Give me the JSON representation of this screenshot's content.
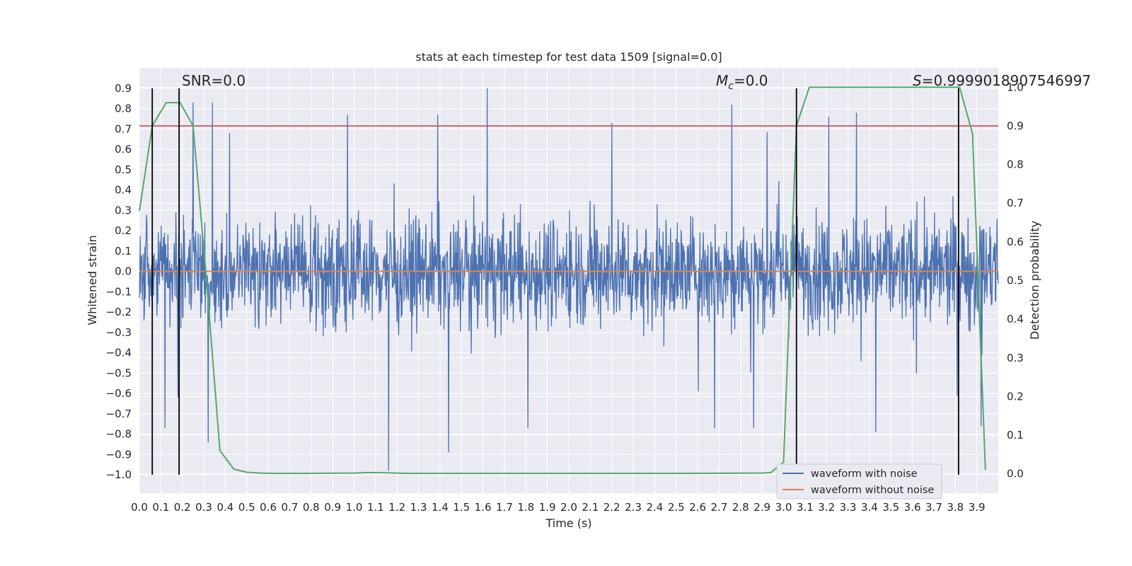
{
  "chart_data": {
    "type": "line",
    "title": "stats at each timestep for test data 1509 [signal=0.0]",
    "xlabel": "Time (s)",
    "ylabel": "Whitened strain",
    "y2label": "Detection probability",
    "xlim": [
      0.0,
      4.0
    ],
    "ylim": [
      -1.09,
      1.0
    ],
    "y2lim": [
      -0.05,
      1.05
    ],
    "x_ticks": [
      0.0,
      0.1,
      0.2,
      0.3,
      0.4,
      0.5,
      0.6,
      0.7,
      0.8,
      0.9,
      1.0,
      1.1,
      1.2,
      1.3,
      1.4,
      1.5,
      1.6,
      1.7,
      1.8,
      1.9,
      2.0,
      2.1,
      2.2,
      2.3,
      2.4,
      2.5,
      2.6,
      2.7,
      2.8,
      2.9,
      3.0,
      3.1,
      3.2,
      3.3,
      3.4,
      3.5,
      3.6,
      3.7,
      3.8,
      3.9
    ],
    "x_tick_labels": [
      "0.0",
      "0.1",
      "0.2",
      "0.3",
      "0.4",
      "0.5",
      "0.6",
      "0.7",
      "0.8",
      "0.9",
      "1.0",
      "1.1",
      "1.2",
      "1.3",
      "1.4",
      "1.5",
      "1.6",
      "1.7",
      "1.8",
      "1.9",
      "2.0",
      "2.1",
      "2.2",
      "2.3",
      "2.4",
      "2.5",
      "2.6",
      "2.7",
      "2.8",
      "2.9",
      "3.0",
      "3.1",
      "3.2",
      "3.3",
      "3.4",
      "3.5",
      "3.6",
      "3.7",
      "3.8",
      "3.9"
    ],
    "y_ticks": [
      0.9,
      0.8,
      0.7,
      0.6,
      0.5,
      0.4,
      0.3,
      0.2,
      0.1,
      0.0,
      -0.1,
      -0.2,
      -0.3,
      -0.4,
      -0.5,
      -0.6,
      -0.7,
      -0.8,
      -0.9,
      -1.0
    ],
    "y_tick_labels": [
      "0.9",
      "0.8",
      "0.7",
      "0.6",
      "0.5",
      "0.4",
      "0.3",
      "0.2",
      "0.1",
      "0.0",
      "−0.1",
      "−0.2",
      "−0.3",
      "−0.4",
      "−0.5",
      "−0.6",
      "−0.7",
      "−0.8",
      "−0.9",
      "−1.0"
    ],
    "y2_ticks": [
      1.0,
      0.9,
      0.8,
      0.7,
      0.6,
      0.5,
      0.4,
      0.3,
      0.2,
      0.1,
      0.0
    ],
    "y2_tick_labels": [
      "1.0",
      "0.9",
      "0.8",
      "0.7",
      "0.6",
      "0.5",
      "0.4",
      "0.3",
      "0.2",
      "0.1",
      "0.0"
    ],
    "grid": true,
    "legend_position": "lower-right",
    "noise_band": {
      "center": 0.0,
      "typical_amplitude": 0.3,
      "peak_max": 0.9,
      "peak_min": -1.0,
      "samples": 2048
    },
    "noise_spikes": [
      {
        "x": 0.12,
        "y": -0.77
      },
      {
        "x": 0.18,
        "y": -0.62
      },
      {
        "x": 0.25,
        "y": 0.83
      },
      {
        "x": 0.32,
        "y": -0.84
      },
      {
        "x": 0.34,
        "y": 0.83
      },
      {
        "x": 0.42,
        "y": 0.68
      },
      {
        "x": 0.97,
        "y": 0.77
      },
      {
        "x": 1.16,
        "y": -0.98
      },
      {
        "x": 1.39,
        "y": 0.77
      },
      {
        "x": 1.44,
        "y": -0.89
      },
      {
        "x": 1.62,
        "y": 0.9
      },
      {
        "x": 1.81,
        "y": -0.77
      },
      {
        "x": 2.2,
        "y": 0.73
      },
      {
        "x": 2.68,
        "y": -0.77
      },
      {
        "x": 2.76,
        "y": 0.82
      },
      {
        "x": 2.86,
        "y": -0.77
      },
      {
        "x": 3.21,
        "y": 0.76
      },
      {
        "x": 3.34,
        "y": 0.78
      },
      {
        "x": 3.43,
        "y": -0.79
      },
      {
        "x": 3.92,
        "y": -0.76
      }
    ],
    "series": [
      {
        "name": "waveform with noise",
        "color": "#4c72b0",
        "axis": "left"
      },
      {
        "name": "waveform without noise",
        "color": "#dd8452",
        "axis": "left",
        "x": [
          0.0,
          4.0
        ],
        "y": [
          0.0,
          0.0
        ]
      },
      {
        "color": "#55a868",
        "axis": "right",
        "x": [
          0.0,
          0.06,
          0.125,
          0.19,
          0.25,
          0.31,
          0.375,
          0.44,
          0.5,
          0.56,
          0.625,
          0.75,
          1.0,
          1.06,
          1.12,
          1.25,
          1.5,
          2.0,
          2.5,
          2.9,
          2.94,
          3.0,
          3.06,
          3.12,
          3.25,
          3.5,
          3.75,
          3.82,
          3.88,
          3.94
        ],
        "y": [
          0.68,
          0.9,
          0.96,
          0.96,
          0.9,
          0.52,
          0.06,
          0.012,
          0.004,
          0.002,
          0.001,
          0.001,
          0.002,
          0.003,
          0.003,
          0.001,
          0.001,
          0.001,
          0.001,
          0.002,
          0.003,
          0.03,
          0.9,
          1.0,
          1.0,
          1.0,
          1.0,
          1.0,
          0.88,
          0.01
        ]
      }
    ],
    "threshold_line": {
      "y": 0.9,
      "axis": "right",
      "color": "#c44e52"
    },
    "markers": [
      {
        "x": 0.06
      },
      {
        "x": 0.185
      },
      {
        "x": 3.06
      },
      {
        "x": 3.815
      }
    ],
    "annotations": {
      "snr": "SNR=0.0",
      "mc_symbol": "M",
      "mc_sub": "c",
      "mc_value": "=0.0",
      "s_symbol": "S",
      "s_value": "=0.9999018907546997"
    },
    "colors": {
      "background": "#eaeaf2",
      "grid": "#ffffff",
      "marker": "#000000"
    }
  }
}
